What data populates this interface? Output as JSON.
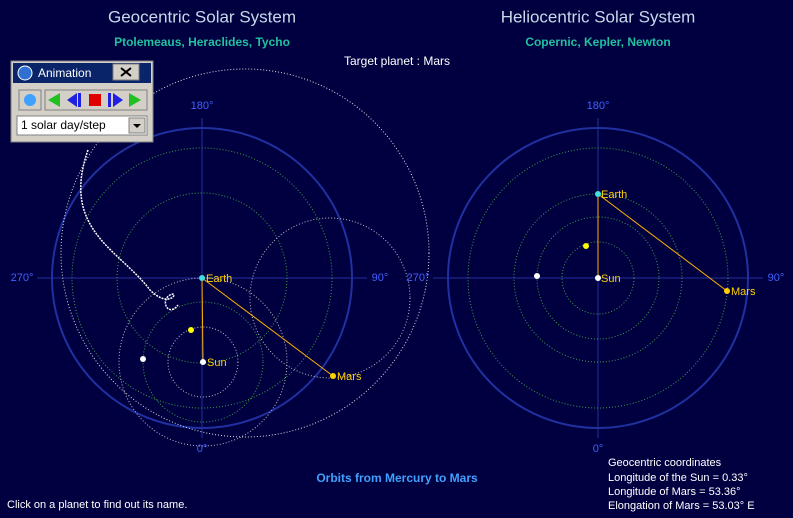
{
  "geocentric": {
    "title": "Geocentric Solar System",
    "subtitle": "Ptolemeaus, Heraclides, Tycho",
    "axis_labels": {
      "top": "180°",
      "left": "270°",
      "right": "90°",
      "bottom": "0°"
    },
    "planets": {
      "earth": "Earth",
      "sun": "Sun",
      "mars": "Mars"
    }
  },
  "heliocentric": {
    "title": "Heliocentric Solar System",
    "subtitle": "Copernic, Kepler, Newton",
    "axis_labels": {
      "top": "180°",
      "left": "270°",
      "right": "90°",
      "bottom": "0°"
    },
    "planets": {
      "earth": "Earth",
      "sun": "Sun",
      "mars": "Mars"
    }
  },
  "target": "Target planet : Mars",
  "animation_window": {
    "title": "Animation",
    "step": "1 solar day/step"
  },
  "orbits_caption": "Orbits from Mercury to Mars",
  "coordinates": {
    "title": "Geocentric coordinates",
    "lines": [
      "Longitude of the Sun = 0.33°",
      "Longitude of Mars = 53.36°",
      "Elongation of Mars = 53.03° E"
    ]
  },
  "status": "Click on a planet to find out its name."
}
